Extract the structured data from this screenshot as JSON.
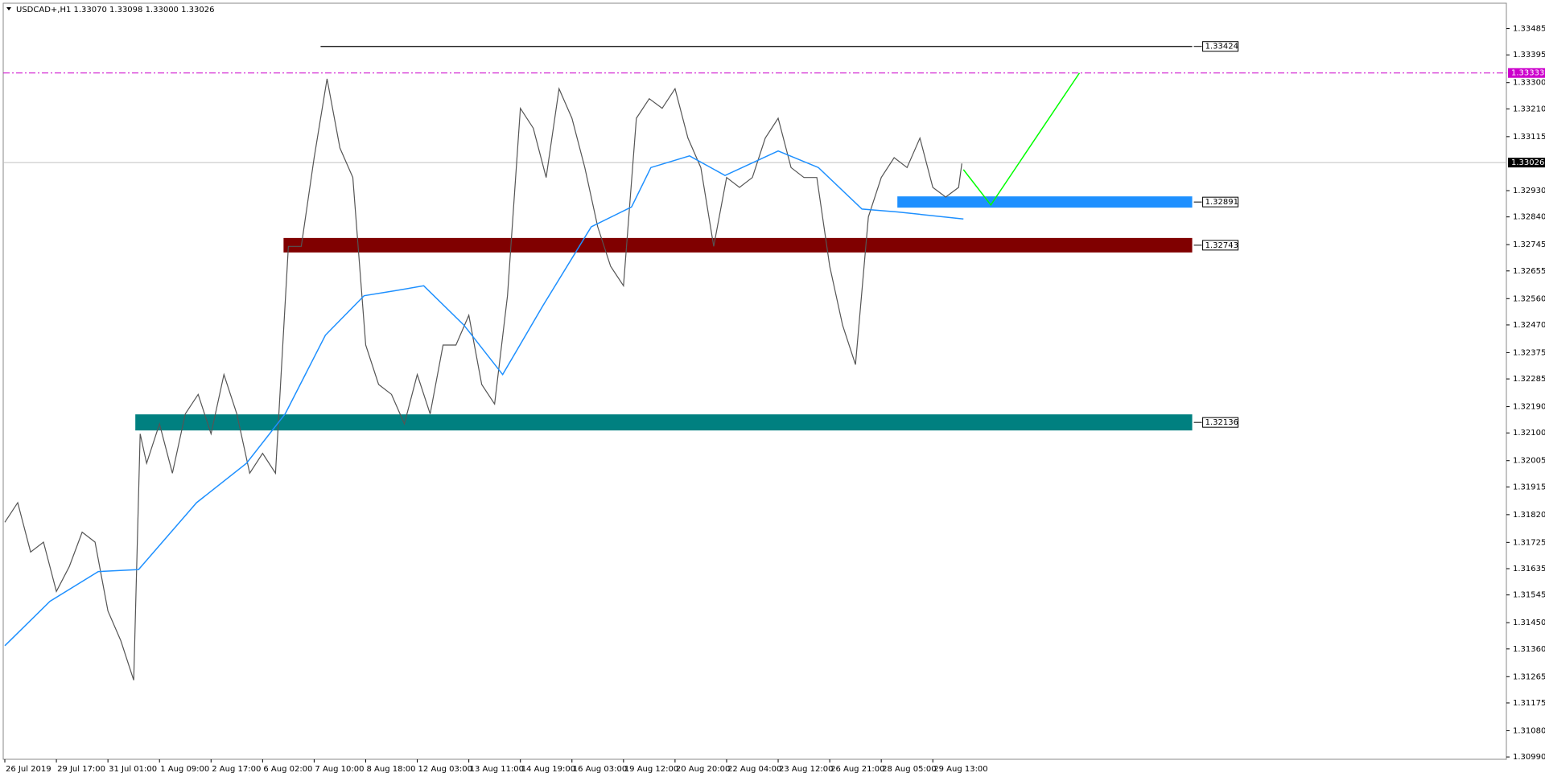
{
  "chart_data": {
    "type": "line",
    "title": "USDCAD+,H1  1.33070 1.33098 1.33000 1.33026",
    "xlim": [
      -1,
      932
    ],
    "ylim": [
      1.30982,
      1.33572
    ],
    "xticks": [
      {
        "value": 0,
        "label": "26 Jul 2019"
      },
      {
        "value": 32,
        "label": "29 Jul 17:00"
      },
      {
        "value": 64,
        "label": "31 Jul 01:00"
      },
      {
        "value": 96,
        "label": "1 Aug 09:00"
      },
      {
        "value": 128,
        "label": "2 Aug 17:00"
      },
      {
        "value": 160,
        "label": "6 Aug 02:00"
      },
      {
        "value": 192,
        "label": "7 Aug 10:00"
      },
      {
        "value": 224,
        "label": "8 Aug 18:00"
      },
      {
        "value": 256,
        "label": "12 Aug 03:00"
      },
      {
        "value": 288,
        "label": "13 Aug 11:00"
      },
      {
        "value": 320,
        "label": "14 Aug 19:00"
      },
      {
        "value": 352,
        "label": "16 Aug 03:00"
      },
      {
        "value": 384,
        "label": "19 Aug 12:00"
      },
      {
        "value": 416,
        "label": "20 Aug 20:00"
      },
      {
        "value": 448,
        "label": "22 Aug 04:00"
      },
      {
        "value": 480,
        "label": "23 Aug 12:00"
      },
      {
        "value": 512,
        "label": "26 Aug 21:00"
      },
      {
        "value": 544,
        "label": "28 Aug 05:00"
      },
      {
        "value": 576,
        "label": "29 Aug 13:00"
      }
    ],
    "yticks": [
      1.33485,
      1.33395,
      {
        "value": 1.333,
        "label": "1.33300"
      },
      {
        "value": 1.3321,
        "label": "1.33210"
      },
      1.33115,
      {
        "value": 1.3293,
        "label": "1.32930"
      },
      {
        "value": 1.3284,
        "label": "1.32840"
      },
      1.32745,
      1.32655,
      {
        "value": 1.3256,
        "label": "1.32560"
      },
      {
        "value": 1.3247,
        "label": "1.32470"
      },
      1.32375,
      1.32285,
      {
        "value": 1.3219,
        "label": "1.32190"
      },
      {
        "value": 1.321,
        "label": "1.32100"
      },
      {
        "value": 1.32005,
        "label": "1.32005"
      },
      1.31915,
      {
        "value": 1.3182,
        "label": "1.31820"
      },
      1.31725,
      1.31635,
      1.31545,
      {
        "value": 1.3145,
        "label": "1.31450"
      },
      {
        "value": 1.3136,
        "label": "1.31360"
      },
      1.31265,
      1.31175,
      {
        "value": 1.3108,
        "label": "1.31080"
      },
      {
        "value": 1.3099,
        "label": "1.30990"
      }
    ],
    "series": [
      {
        "color": "#555555",
        "x": [
          0,
          8,
          16,
          24,
          32,
          40,
          48,
          56,
          64,
          72,
          80,
          84,
          88,
          96,
          104,
          112,
          120,
          128,
          136,
          144,
          152,
          160,
          168,
          176,
          184,
          192,
          200,
          208,
          216,
          224,
          232,
          240,
          248,
          256,
          264,
          272,
          280,
          288,
          296,
          304,
          312,
          320,
          328,
          336,
          344,
          352,
          360,
          368,
          376,
          384,
          392,
          400,
          408,
          416,
          424,
          432,
          440,
          448,
          456,
          464,
          472,
          480,
          488,
          496,
          504,
          512,
          520,
          528,
          536,
          544,
          552,
          560,
          568,
          576,
          584,
          592,
          594
        ],
        "values": [
          1.31794,
          1.31861,
          1.31692,
          1.31726,
          1.31557,
          1.31642,
          1.3176,
          1.31726,
          1.3149,
          1.31388,
          1.31253,
          1.32097,
          1.31996,
          1.32131,
          1.31962,
          1.32165,
          1.32232,
          1.32097,
          1.323,
          1.32165,
          1.31962,
          1.3203,
          1.31962,
          1.32739,
          1.32739,
          1.33043,
          1.33313,
          1.33076,
          1.32975,
          1.32401,
          1.32266,
          1.32232,
          1.32131,
          1.323,
          1.32165,
          1.32401,
          1.32401,
          1.32503,
          1.32266,
          1.32199,
          1.3257,
          1.33212,
          1.33144,
          1.32975,
          1.33279,
          1.33178,
          1.33009,
          1.32806,
          1.32671,
          1.32604,
          1.33178,
          1.33245,
          1.33212,
          1.33279,
          1.3311,
          1.33009,
          1.32739,
          1.32975,
          1.32941,
          1.32975,
          1.3311,
          1.33178,
          1.33009,
          1.32975,
          1.32975,
          1.32671,
          1.32469,
          1.32334,
          1.3284,
          1.32975,
          1.33043,
          1.33009,
          1.3311,
          1.32941,
          1.32908,
          1.32941,
          1.33023
        ]
      },
      {
        "color": "#1e90ff",
        "x": [
          0,
          28,
          58,
          83,
          119,
          150,
          174,
          199,
          223,
          242,
          260,
          285,
          309,
          334,
          364,
          389,
          401,
          425,
          447,
          480,
          505,
          532,
          554,
          595
        ],
        "values": [
          1.31371,
          1.31523,
          1.31625,
          1.31632,
          1.31861,
          1.31996,
          1.32165,
          1.32435,
          1.3257,
          1.32587,
          1.32604,
          1.32469,
          1.323,
          1.32536,
          1.32806,
          1.32874,
          1.33009,
          1.33049,
          1.32982,
          1.33066,
          1.33009,
          1.32867,
          1.32857,
          1.32833
        ]
      },
      {
        "color": "#00ff00",
        "x": [
          595,
          612,
          667
        ],
        "values": [
          1.33002,
          1.32881,
          1.33333
        ]
      }
    ],
    "levels": [
      {
        "value": 1.33424,
        "kind": "line",
        "color": "#000000",
        "x": [
          196,
          737
        ]
      },
      {
        "value": 1.33333,
        "kind": "dashdot",
        "color": "#cc00cc"
      },
      {
        "value": 1.33026,
        "kind": "current",
        "color": "#c0c0c0"
      },
      {
        "value": 1.32891,
        "kind": "zone",
        "color": "#1e90ff",
        "x": [
          554,
          737
        ]
      },
      {
        "value": 1.32743,
        "kind": "zone",
        "color": "#800000",
        "x": [
          173,
          737
        ]
      },
      {
        "value": 1.32136,
        "kind": "zone",
        "color": "#008080",
        "x": [
          81,
          737
        ]
      }
    ]
  }
}
